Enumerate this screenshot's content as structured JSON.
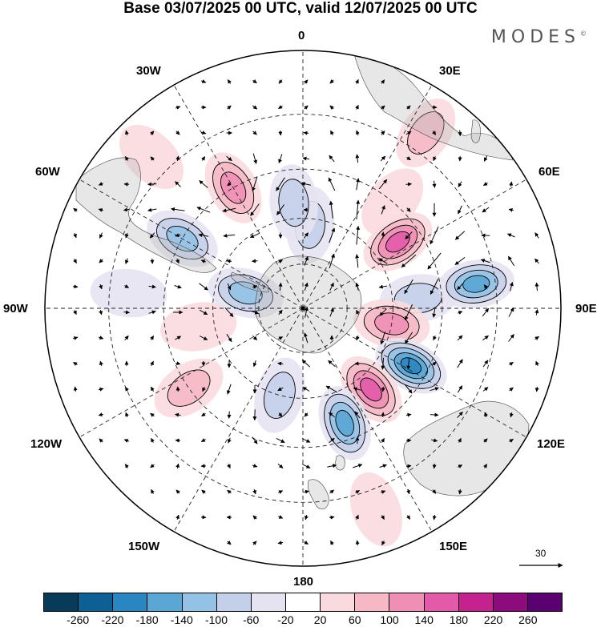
{
  "title": "Base 03/07/2025 00 UTC, valid 12/07/2025 00 UTC",
  "brand": "MODES",
  "brand_mark": "©",
  "longitude_labels": {
    "n0": "0",
    "e30": "30E",
    "e60": "60E",
    "e90": "90E",
    "e120": "120E",
    "e150": "150E",
    "s180": "180",
    "w150": "150W",
    "w120": "120W",
    "w90": "90W",
    "w60": "60W",
    "w30": "30W"
  },
  "reference_vector": {
    "label": "30"
  },
  "colorbar": {
    "colors": [
      "#083a5a",
      "#0d5f94",
      "#2a85c3",
      "#5aa6d4",
      "#94c2e4",
      "#c4d0ea",
      "#e5e3f1",
      "#ffffff",
      "#f9dade",
      "#f5b8c4",
      "#ef8fb5",
      "#e25aa8",
      "#c5228f",
      "#8e0b7d",
      "#5b0070"
    ],
    "tick_labels": [
      "-260",
      "-220",
      "-180",
      "-140",
      "-100",
      "-60",
      "-20",
      "20",
      "60",
      "100",
      "140",
      "180",
      "220",
      "260"
    ]
  },
  "anomaly_centers": [
    {
      "lon": 5,
      "lat": -62,
      "value": -80
    },
    {
      "lon": -5,
      "lat": -55,
      "value": -90
    },
    {
      "lon": 40,
      "lat": -45,
      "value": 50
    },
    {
      "lon": 55,
      "lat": -52,
      "value": 160
    },
    {
      "lon": 85,
      "lat": -52,
      "value": -90
    },
    {
      "lon": 82,
      "lat": -35,
      "value": -140
    },
    {
      "lon": 100,
      "lat": -60,
      "value": 120
    },
    {
      "lon": 118,
      "lat": -50,
      "value": -200
    },
    {
      "lon": 140,
      "lat": -55,
      "value": 150
    },
    {
      "lon": 160,
      "lat": -50,
      "value": -150
    },
    {
      "lon": -165,
      "lat": -60,
      "value": -90
    },
    {
      "lon": -125,
      "lat": -45,
      "value": 60
    },
    {
      "lon": -100,
      "lat": -55,
      "value": 50
    },
    {
      "lon": -75,
      "lat": -70,
      "value": -130
    },
    {
      "lon": -60,
      "lat": -45,
      "value": -110
    },
    {
      "lon": -30,
      "lat": -45,
      "value": 130
    },
    {
      "lon": -45,
      "lat": -25,
      "value": 40
    },
    {
      "lon": 35,
      "lat": -25,
      "value": 60
    },
    {
      "lon": -85,
      "lat": -35,
      "value": -40
    },
    {
      "lon": 160,
      "lat": -25,
      "value": 40
    }
  ]
}
